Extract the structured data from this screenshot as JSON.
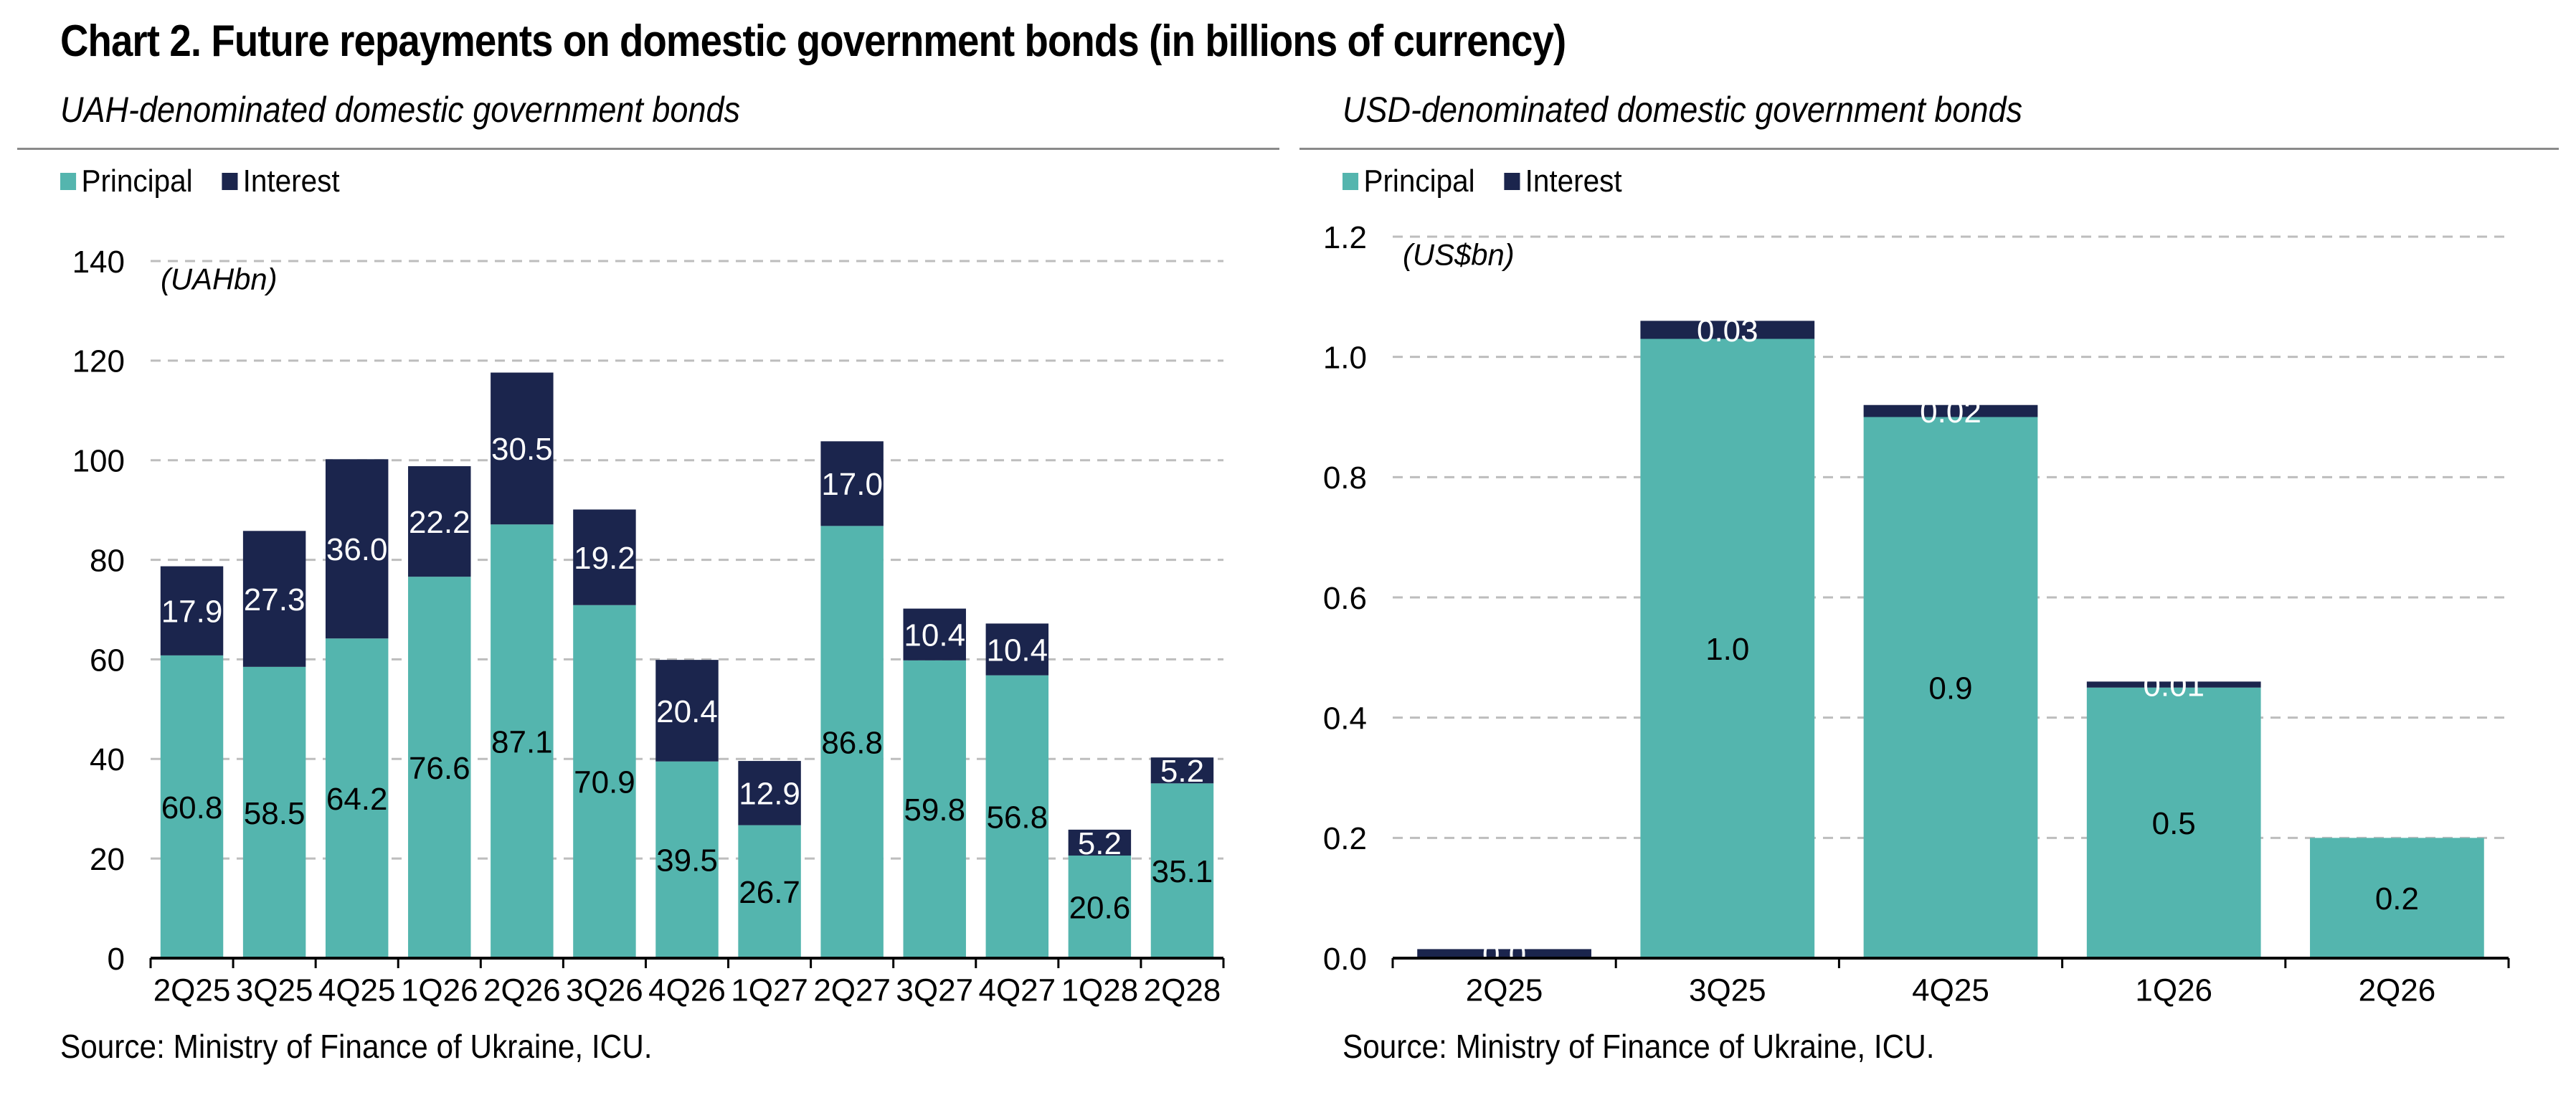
{
  "title": "Chart 2. Future repayments on domestic government bonds (in billions of currency)",
  "colors": {
    "principal": "#54b5ae",
    "interest": "#1b254d"
  },
  "chart_data": [
    {
      "type": "bar",
      "stacked": true,
      "title": "UAH-denominated domestic government bonds",
      "unit_label": "(UAHbn)",
      "categories": [
        "2Q25",
        "3Q25",
        "4Q25",
        "1Q26",
        "2Q26",
        "3Q26",
        "4Q26",
        "1Q27",
        "2Q27",
        "3Q27",
        "4Q27",
        "1Q28",
        "2Q28"
      ],
      "series": [
        {
          "name": "Principal",
          "values": [
            60.8,
            58.5,
            64.2,
            76.6,
            87.1,
            70.9,
            39.5,
            26.7,
            86.8,
            59.8,
            56.8,
            20.6,
            35.1
          ],
          "labels": [
            "60.8",
            "58.5",
            "64.2",
            "76.6",
            "87.1",
            "70.9",
            "39.5",
            "26.7",
            "86.8",
            "59.8",
            "56.8",
            "20.6",
            "35.1"
          ]
        },
        {
          "name": "Interest",
          "values": [
            17.9,
            27.3,
            36.0,
            22.2,
            30.5,
            19.2,
            20.4,
            12.9,
            17.0,
            10.4,
            10.4,
            5.2,
            5.2
          ],
          "labels": [
            "17.9",
            "27.3",
            "36.0",
            "22.2",
            "30.5",
            "19.2",
            "20.4",
            "12.9",
            "17.0",
            "10.4",
            "10.4",
            "5.2",
            "5.2"
          ]
        }
      ],
      "ylim": [
        0,
        140
      ],
      "yticks": [
        "0",
        "20",
        "40",
        "60",
        "80",
        "100",
        "120",
        "140"
      ],
      "grid": true,
      "legend": "top-left",
      "source": "Source: Ministry of Finance of Ukraine, ICU."
    },
    {
      "type": "bar",
      "stacked": true,
      "title": "USD-denominated domestic government bonds",
      "unit_label": "(US$bn)",
      "categories": [
        "2Q25",
        "3Q25",
        "4Q25",
        "1Q26",
        "2Q26"
      ],
      "series": [
        {
          "name": "Principal",
          "values": [
            0.0,
            1.03,
            0.9,
            0.45,
            0.2
          ],
          "labels": [
            "",
            "1.0",
            "0.9",
            "0.5",
            "0.2"
          ]
        },
        {
          "name": "Interest",
          "values": [
            0.015,
            0.03,
            0.02,
            0.01,
            0.0
          ],
          "labels": [
            "0.0",
            "0.03",
            "0.02",
            "0.01",
            ""
          ]
        }
      ],
      "ylim": [
        0,
        1.2
      ],
      "yticks": [
        "0.0",
        "0.2",
        "0.4",
        "0.6",
        "0.8",
        "1.0",
        "1.2"
      ],
      "grid": true,
      "legend": "top-left",
      "source": "Source: Ministry of Finance of Ukraine, ICU."
    }
  ]
}
